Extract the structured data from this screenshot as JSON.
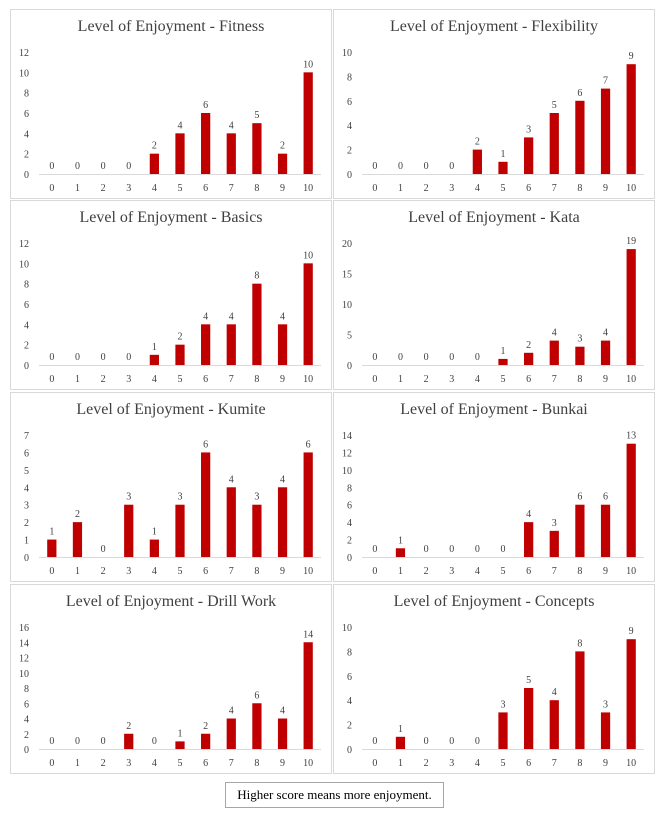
{
  "footnote": "Higher score means more enjoyment.",
  "colors": {
    "bar": "#c00000",
    "axis": "#d9d9d9",
    "text": "#404040",
    "border": "#d9d9d9"
  },
  "chart_data": [
    {
      "type": "bar",
      "title": "Level of Enjoyment - Fitness",
      "categories": [
        "0",
        "1",
        "2",
        "3",
        "4",
        "5",
        "6",
        "7",
        "8",
        "9",
        "10"
      ],
      "values": [
        0,
        0,
        0,
        0,
        2,
        4,
        6,
        4,
        5,
        2,
        10
      ],
      "ylim": [
        0,
        12
      ],
      "yticks": [
        0,
        2,
        4,
        6,
        8,
        10,
        12
      ],
      "grid": false,
      "legend": "none",
      "xlabel": "",
      "ylabel": ""
    },
    {
      "type": "bar",
      "title": "Level of Enjoyment - Flexibility",
      "categories": [
        "0",
        "1",
        "2",
        "3",
        "4",
        "5",
        "6",
        "7",
        "8",
        "9",
        "10"
      ],
      "values": [
        0,
        0,
        0,
        0,
        2,
        1,
        3,
        5,
        6,
        7,
        9
      ],
      "ylim": [
        0,
        10
      ],
      "yticks": [
        0,
        2,
        4,
        6,
        8,
        10
      ],
      "grid": false,
      "legend": "none",
      "xlabel": "",
      "ylabel": ""
    },
    {
      "type": "bar",
      "title": "Level of Enjoyment - Basics",
      "categories": [
        "0",
        "1",
        "2",
        "3",
        "4",
        "5",
        "6",
        "7",
        "8",
        "9",
        "10"
      ],
      "values": [
        0,
        0,
        0,
        0,
        1,
        2,
        4,
        4,
        8,
        4,
        10
      ],
      "ylim": [
        0,
        12
      ],
      "yticks": [
        0,
        2,
        4,
        6,
        8,
        10,
        12
      ],
      "grid": false,
      "legend": "none",
      "xlabel": "",
      "ylabel": ""
    },
    {
      "type": "bar",
      "title": "Level of Enjoyment - Kata",
      "categories": [
        "0",
        "1",
        "2",
        "3",
        "4",
        "5",
        "6",
        "7",
        "8",
        "9",
        "10"
      ],
      "values": [
        0,
        0,
        0,
        0,
        0,
        1,
        2,
        4,
        3,
        4,
        19
      ],
      "ylim": [
        0,
        20
      ],
      "yticks": [
        0,
        5,
        10,
        15,
        20
      ],
      "grid": false,
      "legend": "none",
      "xlabel": "",
      "ylabel": ""
    },
    {
      "type": "bar",
      "title": "Level of Enjoyment - Kumite",
      "categories": [
        "0",
        "1",
        "2",
        "3",
        "4",
        "5",
        "6",
        "7",
        "8",
        "9",
        "10"
      ],
      "values": [
        1,
        2,
        0,
        3,
        1,
        3,
        6,
        4,
        3,
        4,
        6
      ],
      "ylim": [
        0,
        7
      ],
      "yticks": [
        0,
        1,
        2,
        3,
        4,
        5,
        6,
        7
      ],
      "grid": false,
      "legend": "none",
      "xlabel": "",
      "ylabel": ""
    },
    {
      "type": "bar",
      "title": "Level of Enjoyment - Bunkai",
      "categories": [
        "0",
        "1",
        "2",
        "3",
        "4",
        "5",
        "6",
        "7",
        "8",
        "9",
        "10"
      ],
      "values": [
        0,
        1,
        0,
        0,
        0,
        0,
        4,
        3,
        6,
        6,
        13
      ],
      "ylim": [
        0,
        14
      ],
      "yticks": [
        0,
        2,
        4,
        6,
        8,
        10,
        12,
        14
      ],
      "grid": false,
      "legend": "none",
      "xlabel": "",
      "ylabel": ""
    },
    {
      "type": "bar",
      "title": "Level of Enjoyment - Drill Work",
      "categories": [
        "0",
        "1",
        "2",
        "3",
        "4",
        "5",
        "6",
        "7",
        "8",
        "9",
        "10"
      ],
      "values": [
        0,
        0,
        0,
        2,
        0,
        1,
        2,
        4,
        6,
        4,
        14
      ],
      "ylim": [
        0,
        16
      ],
      "yticks": [
        0,
        2,
        4,
        6,
        8,
        10,
        12,
        14,
        16
      ],
      "grid": false,
      "legend": "none",
      "xlabel": "",
      "ylabel": ""
    },
    {
      "type": "bar",
      "title": "Level of Enjoyment - Concepts",
      "categories": [
        "0",
        "1",
        "2",
        "3",
        "4",
        "5",
        "6",
        "7",
        "8",
        "9",
        "10"
      ],
      "values": [
        0,
        1,
        0,
        0,
        0,
        3,
        5,
        4,
        8,
        3,
        9
      ],
      "ylim": [
        0,
        10
      ],
      "yticks": [
        0,
        2,
        4,
        6,
        8,
        10
      ],
      "grid": false,
      "legend": "none",
      "xlabel": "",
      "ylabel": ""
    }
  ]
}
